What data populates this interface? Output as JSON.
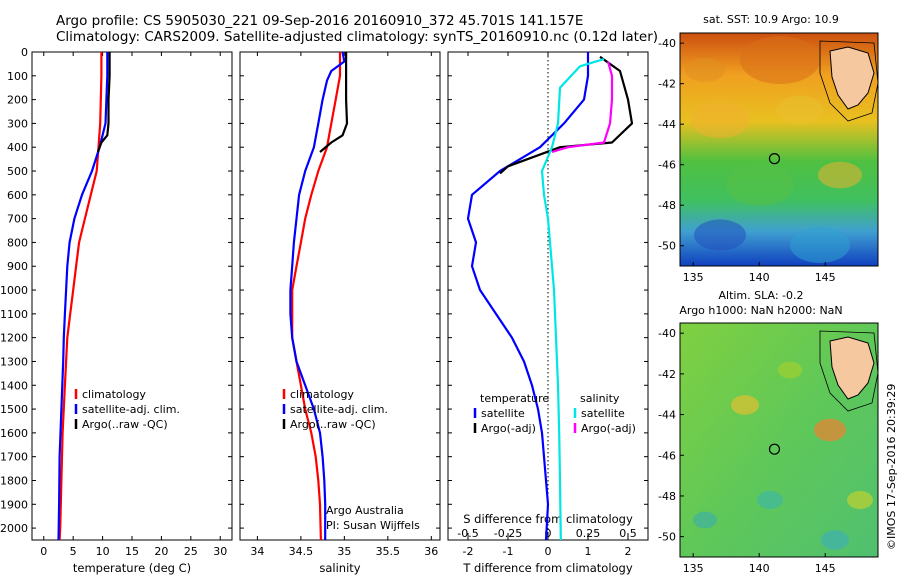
{
  "header": {
    "title_line1": "Argo profile: CS 5905030_221 09-Sep-2016 20160910_372 45.701S 141.157E",
    "title_line2": "Climatology: CARS2009. Satellite-adjusted climatology: synTS_20160910.nc (0.12d later)"
  },
  "depth_ticks": [
    "0",
    "100",
    "200",
    "300",
    "400",
    "500",
    "600",
    "700",
    "800",
    "900",
    "1000",
    "1100",
    "1200",
    "1300",
    "1400",
    "1500",
    "1600",
    "1700",
    "1800",
    "1900",
    "2000"
  ],
  "colors": {
    "climatology": "#ff0000",
    "satellite": "#0000ff",
    "argo": "#000000",
    "satellite_salinity": "#00e6e6",
    "argo_salinity_adj": "#ff00ff"
  },
  "chart_data": [
    {
      "type": "line",
      "panel": "temperature",
      "xlabel": "temperature (deg C)",
      "ylabel": "",
      "xlim": [
        -2,
        32
      ],
      "ylim": [
        2050,
        0
      ],
      "xticks": [
        "0",
        "5",
        "10",
        "15",
        "20",
        "25",
        "30"
      ],
      "legend": [
        "climatology",
        "satellite-adj. clim.",
        "Argo(..raw -QC)"
      ],
      "series": [
        {
          "name": "climatology",
          "color": "#ff0000",
          "points": [
            [
              9.8,
              0
            ],
            [
              9.8,
              100
            ],
            [
              9.6,
              300
            ],
            [
              9.3,
              400
            ],
            [
              9.0,
              500
            ],
            [
              8.0,
              600
            ],
            [
              7.0,
              700
            ],
            [
              6.0,
              800
            ],
            [
              5.5,
              900
            ],
            [
              5.0,
              1000
            ],
            [
              4.5,
              1100
            ],
            [
              4.0,
              1200
            ],
            [
              3.6,
              1400
            ],
            [
              3.2,
              1600
            ],
            [
              3.0,
              1800
            ],
            [
              2.8,
              2000
            ],
            [
              2.7,
              2050
            ]
          ]
        },
        {
          "name": "satellite-adj. clim.",
          "color": "#0000ff",
          "points": [
            [
              10.8,
              0
            ],
            [
              10.8,
              100
            ],
            [
              10.5,
              300
            ],
            [
              9.5,
              400
            ],
            [
              8.2,
              500
            ],
            [
              6.5,
              600
            ],
            [
              5.2,
              700
            ],
            [
              4.4,
              800
            ],
            [
              4.0,
              900
            ],
            [
              3.8,
              1000
            ],
            [
              3.6,
              1100
            ],
            [
              3.4,
              1200
            ],
            [
              3.3,
              1300
            ],
            [
              3.0,
              1500
            ],
            [
              2.7,
              1700
            ],
            [
              2.6,
              1900
            ],
            [
              2.5,
              2050
            ]
          ]
        },
        {
          "name": "Argo(..raw -QC)",
          "color": "#000000",
          "points": [
            [
              11.2,
              0
            ],
            [
              11.2,
              100
            ],
            [
              11.0,
              200
            ],
            [
              11.0,
              300
            ],
            [
              10.8,
              350
            ],
            [
              9.8,
              380
            ],
            [
              9.2,
              420
            ]
          ]
        }
      ]
    },
    {
      "type": "line",
      "panel": "salinity",
      "xlabel": "salinity",
      "ylabel": "",
      "xlim": [
        33.8,
        36.1
      ],
      "ylim": [
        2050,
        0
      ],
      "xticks": [
        "34",
        "34.5",
        "35",
        "35.5",
        "36"
      ],
      "legend": [
        "climatology",
        "satellite-adj. clim.",
        "Argo(..raw -QC)"
      ],
      "series": [
        {
          "name": "climatology",
          "color": "#ff0000",
          "points": [
            [
              34.95,
              0
            ],
            [
              34.95,
              100
            ],
            [
              34.9,
              200
            ],
            [
              34.85,
              300
            ],
            [
              34.8,
              400
            ],
            [
              34.7,
              500
            ],
            [
              34.62,
              600
            ],
            [
              34.55,
              700
            ],
            [
              34.5,
              800
            ],
            [
              34.45,
              900
            ],
            [
              34.4,
              1000
            ],
            [
              34.4,
              1100
            ],
            [
              34.4,
              1200
            ],
            [
              34.45,
              1300
            ],
            [
              34.5,
              1400
            ],
            [
              34.55,
              1500
            ],
            [
              34.62,
              1600
            ],
            [
              34.67,
              1700
            ],
            [
              34.7,
              1800
            ],
            [
              34.72,
              1900
            ],
            [
              34.73,
              2050
            ]
          ]
        },
        {
          "name": "satellite-adj. clim.",
          "color": "#0000ff",
          "points": [
            [
              34.98,
              0
            ],
            [
              35.0,
              40
            ],
            [
              34.85,
              80
            ],
            [
              34.8,
              120
            ],
            [
              34.75,
              200
            ],
            [
              34.7,
              300
            ],
            [
              34.65,
              400
            ],
            [
              34.55,
              500
            ],
            [
              34.48,
              600
            ],
            [
              34.45,
              700
            ],
            [
              34.42,
              800
            ],
            [
              34.4,
              900
            ],
            [
              34.38,
              1000
            ],
            [
              34.38,
              1100
            ],
            [
              34.4,
              1200
            ],
            [
              34.45,
              1300
            ],
            [
              34.55,
              1400
            ],
            [
              34.65,
              1500
            ],
            [
              34.72,
              1600
            ],
            [
              34.75,
              1700
            ],
            [
              34.77,
              1800
            ],
            [
              34.78,
              1900
            ],
            [
              34.78,
              2050
            ]
          ]
        },
        {
          "name": "Argo(..raw -QC)",
          "color": "#000000",
          "points": [
            [
              35.02,
              0
            ],
            [
              35.02,
              100
            ],
            [
              35.02,
              200
            ],
            [
              35.03,
              300
            ],
            [
              34.98,
              350
            ],
            [
              34.85,
              380
            ],
            [
              34.72,
              420
            ]
          ]
        }
      ],
      "annotation": [
        "Argo Australia",
        "PI: Susan Wijffels"
      ]
    },
    {
      "type": "line",
      "panel": "difference",
      "xlabel": "T difference from climatology",
      "xlabel_top": "S difference from climatology",
      "xlim": [
        -2.5,
        2.5
      ],
      "ylim": [
        2050,
        0
      ],
      "xticks_bottom": [
        "-2",
        "-1",
        "0",
        "1",
        "2"
      ],
      "xticks_top": [
        "-0.5",
        "-0.25",
        "0",
        "0.25",
        "0.5"
      ],
      "legend": {
        "temperature_title": "temperature",
        "salinity_title": "salinity",
        "temperature_items": [
          "satellite",
          "Argo(-adj)"
        ],
        "salinity_items": [
          "satellite",
          "Argo(-adj)"
        ]
      },
      "series": [
        {
          "name": "temperature satellite",
          "color": "#0000ff",
          "points": [
            [
              1.0,
              0
            ],
            [
              1.0,
              100
            ],
            [
              0.9,
              200
            ],
            [
              0.4,
              300
            ],
            [
              -0.2,
              400
            ],
            [
              -1.2,
              500
            ],
            [
              -1.9,
              600
            ],
            [
              -2.0,
              700
            ],
            [
              -1.8,
              800
            ],
            [
              -1.9,
              900
            ],
            [
              -1.7,
              1000
            ],
            [
              -1.3,
              1100
            ],
            [
              -0.9,
              1200
            ],
            [
              -0.6,
              1300
            ],
            [
              -0.4,
              1400
            ],
            [
              -0.25,
              1500
            ],
            [
              -0.15,
              1600
            ],
            [
              -0.1,
              1700
            ],
            [
              -0.05,
              1800
            ],
            [
              0.0,
              1900
            ],
            [
              -0.05,
              2050
            ]
          ]
        },
        {
          "name": "temperature Argo(-adj)",
          "color": "#000000",
          "points": [
            [
              1.3,
              20
            ],
            [
              1.8,
              80
            ],
            [
              2.0,
              200
            ],
            [
              2.1,
              300
            ],
            [
              1.6,
              380
            ],
            [
              0.3,
              400
            ],
            [
              -1.0,
              480
            ],
            [
              -1.2,
              510
            ]
          ]
        },
        {
          "name": "salinity satellite",
          "color": "#00e6e6",
          "points": [
            [
              1.4,
              30
            ],
            [
              0.8,
              60
            ],
            [
              0.3,
              150
            ],
            [
              0.25,
              300
            ],
            [
              0.1,
              400
            ],
            [
              -0.15,
              500
            ],
            [
              -0.1,
              600
            ],
            [
              0.0,
              700
            ],
            [
              0.05,
              800
            ],
            [
              0.1,
              900
            ],
            [
              0.15,
              1000
            ],
            [
              0.2,
              1200
            ],
            [
              0.25,
              1400
            ],
            [
              0.28,
              1600
            ],
            [
              0.3,
              1800
            ],
            [
              0.32,
              2050
            ]
          ]
        },
        {
          "name": "salinity Argo(-adj)",
          "color": "#ff00ff",
          "points": [
            [
              1.5,
              40
            ],
            [
              1.6,
              100
            ],
            [
              1.6,
              200
            ],
            [
              1.55,
              300
            ],
            [
              1.4,
              380
            ],
            [
              0.5,
              400
            ],
            [
              0.1,
              420
            ]
          ]
        }
      ]
    },
    {
      "type": "heatmap",
      "panel": "sst_map",
      "title": "sat. SST: 10.9 Argo: 10.9",
      "xticks": [
        "135",
        "140",
        "145"
      ],
      "yticks": [
        "-40",
        "-42",
        "-44",
        "-46",
        "-48",
        "-50"
      ],
      "xlim": [
        134,
        149
      ],
      "ylim": [
        -51,
        -39.5
      ],
      "marker": [
        141.157,
        -45.701
      ]
    },
    {
      "type": "heatmap",
      "panel": "sla_map",
      "title_line1": "Altim. SLA: -0.2",
      "title_line2": "Argo h1000: NaN h2000: NaN",
      "xticks": [
        "135",
        "140",
        "145"
      ],
      "yticks": [
        "-40",
        "-42",
        "-44",
        "-46",
        "-48",
        "-50"
      ],
      "xlim": [
        134,
        149
      ],
      "ylim": [
        -51,
        -39.5
      ],
      "marker": [
        141.157,
        -45.701
      ]
    }
  ],
  "footer": {
    "timestamp": "©IMOS 17-Sep-2016 20:39:29"
  }
}
